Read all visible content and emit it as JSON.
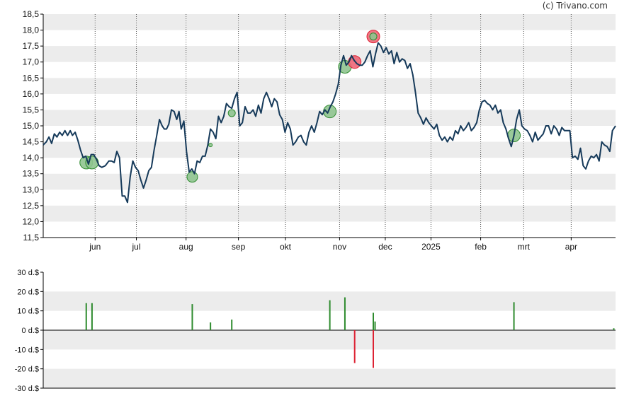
{
  "credit": "(c) Trivano.com",
  "colors": {
    "price_line": "#163a5a",
    "band": "#ececec",
    "axis": "#000000",
    "grid_vertical": "#555555",
    "buy": "#2e8b2e",
    "sell": "#dd2233",
    "buy_marker_fill": "#8fc48f",
    "sell_marker_fill": "#ee6677"
  },
  "chart_data": [
    {
      "type": "line",
      "title": "",
      "ylim": [
        11.5,
        18.5
      ],
      "yticks": [
        "11,5",
        "12,0",
        "12,5",
        "13,0",
        "13,5",
        "14,0",
        "14,5",
        "15,0",
        "15,5",
        "16,0",
        "16,5",
        "17,0",
        "17,5",
        "18,0",
        "18,5"
      ],
      "x_ticks": [
        {
          "label": "jun",
          "x": 11.7
        },
        {
          "label": "jul",
          "x": 21.0
        },
        {
          "label": "aug",
          "x": 32.2
        },
        {
          "label": "sep",
          "x": 44.0
        },
        {
          "label": "okt",
          "x": 54.6
        },
        {
          "label": "nov",
          "x": 66.8
        },
        {
          "label": "dec",
          "x": 77.1
        },
        {
          "label": "2025",
          "x": 87.4
        },
        {
          "label": "feb",
          "x": 98.6
        },
        {
          "label": "mrt",
          "x": 108.3
        },
        {
          "label": "apr",
          "x": 119.0
        }
      ],
      "xlim": [
        0,
        129
      ],
      "grid": "vertical dotted at month ticks, alternating horizontal bands",
      "series": [
        {
          "points": [
            [
              0,
              14.4
            ],
            [
              0.7,
              14.5
            ],
            [
              1.3,
              14.65
            ],
            [
              1.9,
              14.45
            ],
            [
              2.5,
              14.75
            ],
            [
              3.1,
              14.65
            ],
            [
              3.7,
              14.8
            ],
            [
              4.3,
              14.7
            ],
            [
              4.9,
              14.85
            ],
            [
              5.5,
              14.7
            ],
            [
              6.1,
              14.85
            ],
            [
              6.6,
              14.7
            ],
            [
              7.2,
              14.8
            ],
            [
              7.8,
              14.55
            ],
            [
              8.4,
              14.25
            ],
            [
              9.0,
              14.0
            ],
            [
              9.6,
              14.05
            ],
            [
              10.2,
              13.8
            ],
            [
              10.8,
              14.1
            ],
            [
              11.4,
              14.1
            ],
            [
              12.0,
              13.95
            ],
            [
              12.6,
              13.75
            ],
            [
              13.2,
              13.7
            ],
            [
              14.0,
              13.75
            ],
            [
              14.8,
              13.9
            ],
            [
              15.4,
              13.9
            ],
            [
              16.0,
              13.85
            ],
            [
              16.6,
              14.2
            ],
            [
              17.2,
              14.0
            ],
            [
              17.8,
              12.8
            ],
            [
              18.4,
              12.8
            ],
            [
              19.0,
              12.6
            ],
            [
              19.6,
              13.4
            ],
            [
              20.2,
              13.9
            ],
            [
              20.8,
              13.7
            ],
            [
              21.4,
              13.6
            ],
            [
              22.0,
              13.3
            ],
            [
              22.6,
              13.05
            ],
            [
              23.2,
              13.3
            ],
            [
              23.8,
              13.6
            ],
            [
              24.4,
              13.7
            ],
            [
              25.0,
              14.25
            ],
            [
              25.6,
              14.7
            ],
            [
              26.2,
              15.2
            ],
            [
              26.8,
              15.0
            ],
            [
              27.3,
              14.9
            ],
            [
              27.8,
              14.9
            ],
            [
              28.3,
              15.05
            ],
            [
              28.9,
              15.5
            ],
            [
              29.5,
              15.45
            ],
            [
              30.1,
              15.2
            ],
            [
              30.6,
              15.45
            ],
            [
              31.1,
              14.9
            ],
            [
              31.7,
              15.15
            ],
            [
              32.3,
              14.2
            ],
            [
              32.9,
              13.55
            ],
            [
              33.5,
              13.65
            ],
            [
              34.1,
              13.5
            ],
            [
              34.7,
              13.9
            ],
            [
              35.3,
              13.85
            ],
            [
              35.9,
              14.05
            ],
            [
              36.5,
              14.05
            ],
            [
              37.1,
              14.4
            ],
            [
              37.7,
              14.9
            ],
            [
              38.3,
              14.8
            ],
            [
              38.9,
              14.6
            ],
            [
              39.5,
              15.3
            ],
            [
              40.1,
              15.1
            ],
            [
              40.7,
              15.3
            ],
            [
              41.3,
              15.7
            ],
            [
              41.9,
              15.6
            ],
            [
              42.5,
              15.55
            ],
            [
              43.1,
              15.85
            ],
            [
              43.7,
              16.05
            ],
            [
              44.3,
              15.0
            ],
            [
              44.9,
              15.1
            ],
            [
              45.5,
              15.6
            ],
            [
              46.1,
              15.4
            ],
            [
              46.7,
              15.4
            ],
            [
              47.3,
              15.5
            ],
            [
              47.9,
              15.3
            ],
            [
              48.5,
              15.65
            ],
            [
              49.1,
              15.4
            ],
            [
              49.7,
              15.85
            ],
            [
              50.3,
              16.05
            ],
            [
              50.9,
              15.85
            ],
            [
              51.5,
              15.6
            ],
            [
              52.1,
              15.85
            ],
            [
              52.7,
              15.75
            ],
            [
              53.3,
              15.35
            ],
            [
              53.9,
              15.2
            ],
            [
              54.5,
              14.8
            ],
            [
              55.1,
              15.1
            ],
            [
              55.7,
              14.9
            ],
            [
              56.3,
              14.4
            ],
            [
              56.9,
              14.5
            ],
            [
              57.5,
              14.65
            ],
            [
              58.1,
              14.7
            ],
            [
              58.7,
              14.5
            ],
            [
              59.3,
              14.4
            ],
            [
              59.9,
              14.8
            ],
            [
              60.5,
              15.0
            ],
            [
              61.1,
              14.8
            ],
            [
              61.7,
              15.1
            ],
            [
              62.3,
              15.45
            ],
            [
              62.9,
              15.35
            ],
            [
              63.5,
              15.5
            ],
            [
              64.1,
              15.4
            ],
            [
              64.7,
              15.6
            ],
            [
              65.3,
              15.75
            ],
            [
              65.9,
              16.0
            ],
            [
              66.5,
              16.3
            ],
            [
              67.1,
              16.9
            ],
            [
              67.7,
              17.2
            ],
            [
              68.3,
              16.9
            ],
            [
              68.9,
              17.0
            ],
            [
              69.5,
              17.2
            ],
            [
              70.1,
              17.05
            ],
            [
              70.7,
              16.95
            ],
            [
              71.3,
              16.9
            ],
            [
              71.9,
              16.9
            ],
            [
              72.5,
              17.0
            ],
            [
              73.1,
              17.2
            ],
            [
              73.7,
              17.35
            ],
            [
              74.3,
              16.85
            ],
            [
              74.9,
              17.25
            ],
            [
              75.5,
              17.6
            ],
            [
              76.1,
              17.5
            ],
            [
              76.7,
              17.3
            ],
            [
              77.3,
              17.45
            ],
            [
              77.9,
              17.25
            ],
            [
              78.5,
              17.35
            ],
            [
              79.1,
              16.95
            ],
            [
              79.7,
              17.3
            ],
            [
              80.3,
              17.0
            ],
            [
              80.9,
              17.1
            ],
            [
              81.5,
              17.05
            ],
            [
              82.1,
              16.8
            ],
            [
              82.7,
              16.95
            ],
            [
              83.3,
              16.6
            ],
            [
              83.9,
              16.05
            ],
            [
              84.5,
              15.4
            ],
            [
              85.1,
              15.25
            ],
            [
              85.7,
              15.05
            ],
            [
              86.3,
              15.25
            ],
            [
              86.9,
              15.1
            ],
            [
              87.5,
              15.0
            ],
            [
              88.1,
              14.9
            ],
            [
              88.7,
              15.05
            ],
            [
              89.3,
              14.7
            ],
            [
              89.9,
              14.55
            ],
            [
              90.5,
              14.65
            ],
            [
              91.1,
              14.5
            ],
            [
              91.7,
              14.65
            ],
            [
              92.3,
              14.55
            ],
            [
              92.9,
              14.85
            ],
            [
              93.5,
              14.75
            ],
            [
              94.1,
              15.0
            ],
            [
              94.7,
              14.85
            ],
            [
              95.3,
              14.95
            ],
            [
              95.9,
              15.1
            ],
            [
              96.5,
              14.85
            ],
            [
              97.1,
              14.95
            ],
            [
              97.7,
              15.1
            ],
            [
              98.3,
              15.5
            ],
            [
              98.9,
              15.75
            ],
            [
              99.5,
              15.8
            ],
            [
              100.1,
              15.7
            ],
            [
              100.7,
              15.65
            ],
            [
              101.3,
              15.5
            ],
            [
              101.9,
              15.65
            ],
            [
              102.5,
              15.4
            ],
            [
              103.1,
              15.5
            ],
            [
              103.7,
              15.1
            ],
            [
              104.3,
              14.9
            ],
            [
              104.9,
              14.6
            ],
            [
              105.5,
              14.35
            ],
            [
              106.1,
              14.7
            ],
            [
              106.7,
              15.2
            ],
            [
              107.3,
              15.5
            ],
            [
              107.9,
              15.0
            ],
            [
              108.5,
              14.9
            ],
            [
              109.1,
              14.85
            ],
            [
              109.7,
              14.7
            ],
            [
              110.3,
              14.5
            ],
            [
              110.9,
              14.8
            ],
            [
              111.5,
              14.55
            ],
            [
              112.1,
              14.65
            ],
            [
              112.7,
              14.75
            ],
            [
              113.3,
              15.0
            ],
            [
              113.9,
              15.0
            ],
            [
              114.5,
              14.75
            ],
            [
              115.1,
              15.0
            ],
            [
              115.7,
              14.9
            ],
            [
              116.3,
              14.7
            ],
            [
              116.9,
              14.95
            ],
            [
              117.5,
              14.85
            ],
            [
              118.1,
              14.85
            ],
            [
              118.7,
              14.85
            ],
            [
              119.3,
              14.0
            ],
            [
              119.9,
              14.05
            ],
            [
              120.5,
              13.95
            ],
            [
              121.1,
              14.3
            ],
            [
              121.7,
              13.75
            ],
            [
              122.3,
              13.65
            ],
            [
              122.9,
              13.9
            ],
            [
              123.5,
              14.05
            ],
            [
              124.1,
              14.0
            ],
            [
              124.7,
              14.1
            ],
            [
              125.3,
              13.9
            ],
            [
              125.9,
              14.5
            ],
            [
              126.5,
              14.4
            ],
            [
              127.1,
              14.35
            ],
            [
              127.7,
              14.2
            ],
            [
              128.3,
              14.85
            ],
            [
              129,
              15.0
            ]
          ]
        }
      ],
      "markers": [
        {
          "x": 9.7,
          "y": 13.85,
          "side": "buy",
          "size": "large"
        },
        {
          "x": 11.0,
          "y": 13.85,
          "side": "buy",
          "size": "large"
        },
        {
          "x": 33.6,
          "y": 13.4,
          "side": "buy",
          "size": "medium"
        },
        {
          "x": 37.7,
          "y": 14.4,
          "side": "buy",
          "size": "tiny"
        },
        {
          "x": 42.5,
          "y": 15.4,
          "side": "buy",
          "size": "small"
        },
        {
          "x": 64.6,
          "y": 15.45,
          "side": "buy",
          "size": "large"
        },
        {
          "x": 68.0,
          "y": 16.85,
          "side": "buy",
          "size": "large"
        },
        {
          "x": 70.2,
          "y": 17.0,
          "side": "sell",
          "size": "large"
        },
        {
          "x": 74.4,
          "y": 17.8,
          "side": "sell",
          "size": "large"
        },
        {
          "x": 74.4,
          "y": 17.8,
          "side": "buy",
          "size": "small"
        },
        {
          "x": 106.1,
          "y": 14.7,
          "side": "buy",
          "size": "large"
        }
      ]
    },
    {
      "type": "bar",
      "title": "",
      "ylim": [
        -30,
        30
      ],
      "yticks": [
        "30 d.$",
        "20 d.$",
        "10 d.$",
        "0 d.$",
        "-10 d.$",
        "-20 d.$",
        "-30 d.$"
      ],
      "bars": [
        {
          "x": 9.7,
          "value": 14,
          "side": "buy"
        },
        {
          "x": 11.0,
          "value": 14,
          "side": "buy"
        },
        {
          "x": 33.6,
          "value": 13.5,
          "side": "buy"
        },
        {
          "x": 37.7,
          "value": 4,
          "side": "buy"
        },
        {
          "x": 42.5,
          "value": 5.5,
          "side": "buy"
        },
        {
          "x": 64.6,
          "value": 15.5,
          "side": "buy"
        },
        {
          "x": 68.0,
          "value": 17,
          "side": "buy"
        },
        {
          "x": 70.2,
          "value": -17,
          "side": "sell"
        },
        {
          "x": 74.4,
          "value": -19.5,
          "side": "sell"
        },
        {
          "x": 74.4,
          "value": 9,
          "side": "buy"
        },
        {
          "x": 74.8,
          "value": 4.5,
          "side": "buy"
        },
        {
          "x": 106.1,
          "value": 14.5,
          "side": "buy"
        },
        {
          "x": 128.6,
          "value": 1,
          "side": "buy"
        }
      ]
    }
  ]
}
